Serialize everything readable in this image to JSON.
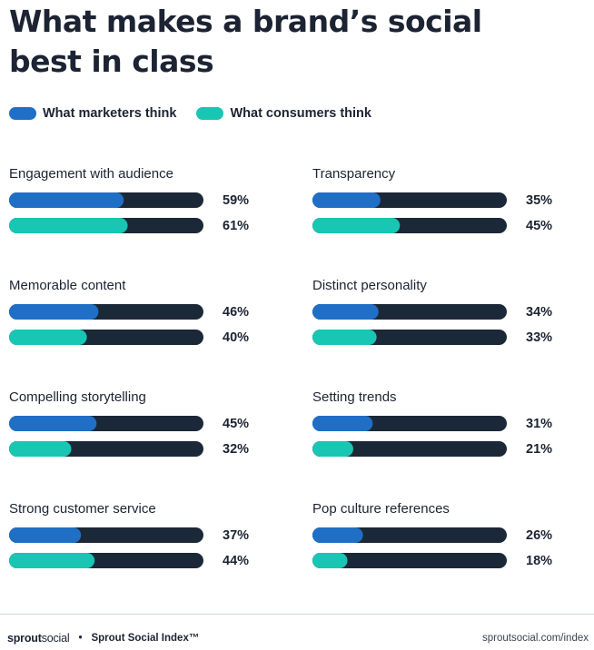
{
  "title_line1": "What makes a brand’s social",
  "title_line2": "best in class",
  "colors": {
    "marketers": "#1f6fc6",
    "consumers": "#19c6b4",
    "track": "#1b2838",
    "text": "#1c2333"
  },
  "chart_data": {
    "type": "bar",
    "title": "What makes a brand’s social best in class",
    "xlim": [
      0,
      100
    ],
    "legend_placement": "top-left",
    "series": [
      {
        "name": "What marketers think",
        "color": "#1f6fc6"
      },
      {
        "name": "What consumers think",
        "color": "#19c6b4"
      }
    ],
    "categories": [
      {
        "label": "Engagement with audience",
        "marketers": 59,
        "consumers": 61
      },
      {
        "label": "Transparency",
        "marketers": 35,
        "consumers": 45
      },
      {
        "label": "Memorable content",
        "marketers": 46,
        "consumers": 40
      },
      {
        "label": "Distinct personality",
        "marketers": 34,
        "consumers": 33
      },
      {
        "label": "Compelling storytelling",
        "marketers": 45,
        "consumers": 32
      },
      {
        "label": "Setting trends",
        "marketers": 31,
        "consumers": 21
      },
      {
        "label": "Strong customer service",
        "marketers": 37,
        "consumers": 44
      },
      {
        "label": "Pop culture references",
        "marketers": 26,
        "consumers": 18
      }
    ]
  },
  "footer": {
    "logo_bold": "sprout",
    "logo_light": "social",
    "separator": "•",
    "index_label": "Sprout Social Index™",
    "url": "sproutsocial.com/index"
  }
}
